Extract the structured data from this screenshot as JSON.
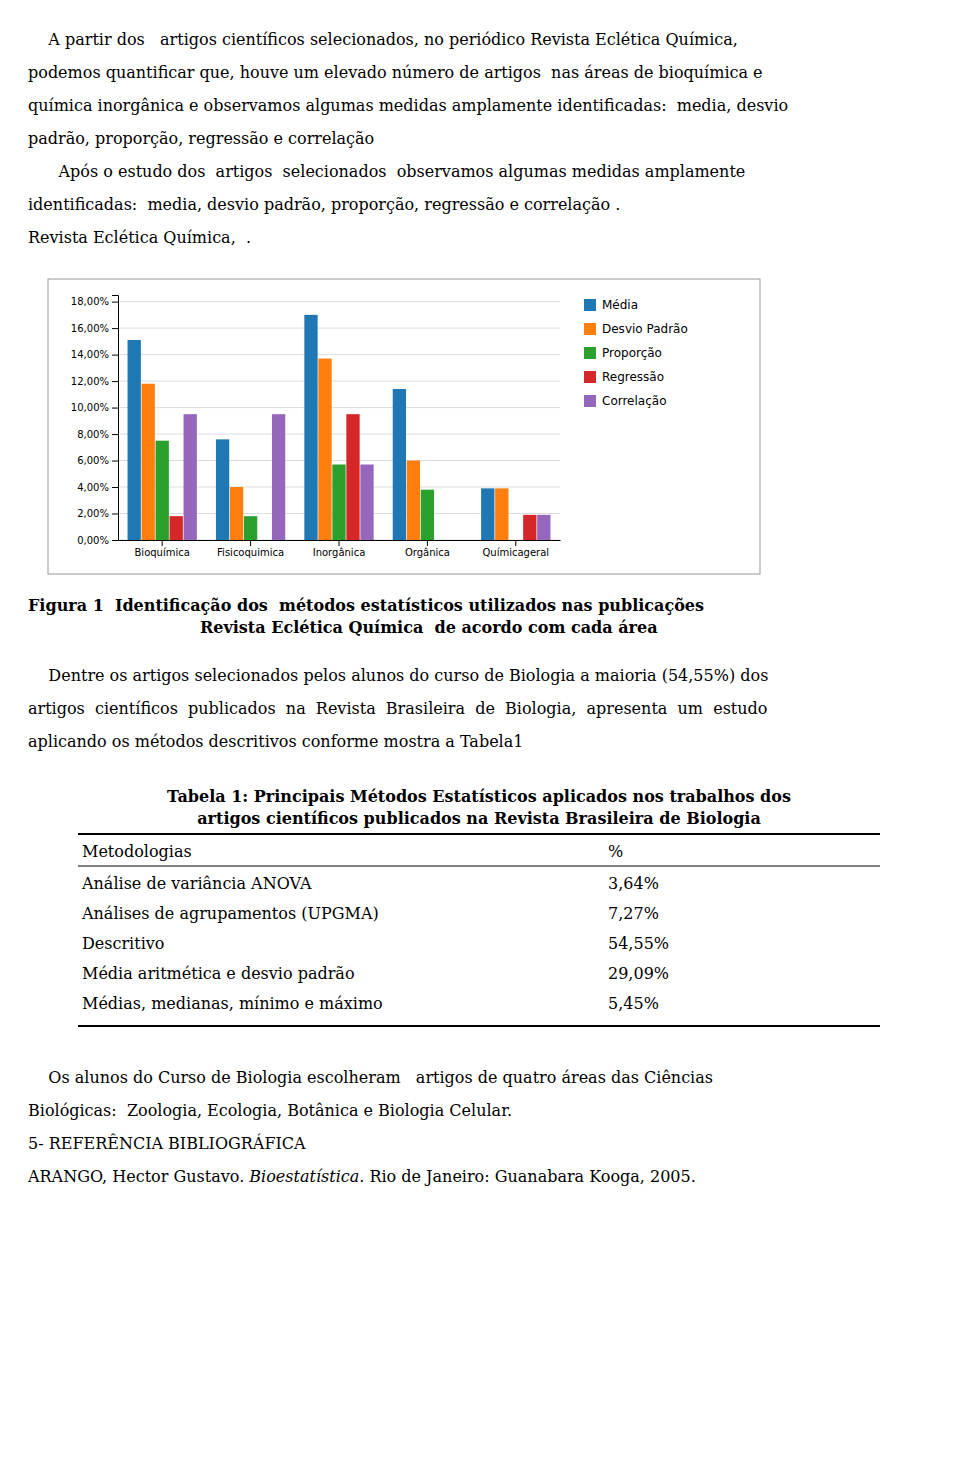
{
  "chart_data": {
    "type": "bar",
    "title": "Figura 1  Identificação dos  métodos estatísticos utilizados nas publicações",
    "subtitle": "Revista Eclética Química  de acordo com cada área",
    "categories": [
      "Bioquímica",
      "Fisicoquimica",
      "Inorgânica",
      "Orgânica",
      "Químicageral"
    ],
    "series": [
      {
        "name": "Média",
        "values": [
          15.1,
          7.6,
          17.0,
          11.4,
          3.9
        ]
      },
      {
        "name": "Desvio Padrão",
        "values": [
          11.8,
          4.0,
          13.7,
          6.0,
          3.9
        ]
      },
      {
        "name": "Proporção",
        "values": [
          7.5,
          1.8,
          5.7,
          3.8,
          0.0
        ]
      },
      {
        "name": "Regressão",
        "values": [
          1.8,
          0.0,
          9.5,
          0.0,
          1.9
        ]
      },
      {
        "name": "Correlação",
        "values": [
          9.5,
          9.5,
          5.7,
          0.0,
          1.9
        ]
      }
    ],
    "ylim": [
      0,
      18.5
    ],
    "yticks": [
      {
        "value": 0,
        "label": "0,00%"
      },
      {
        "value": 2,
        "label": "2,00%"
      },
      {
        "value": 4,
        "label": "4,00%"
      },
      {
        "value": 6,
        "label": "6,00%"
      },
      {
        "value": 8,
        "label": "8,00%"
      },
      {
        "value": 10,
        "label": "10,00%"
      },
      {
        "value": 12,
        "label": "12,00%"
      },
      {
        "value": 14,
        "label": "14,00%"
      },
      {
        "value": 16,
        "label": "16,00%"
      },
      {
        "value": 18,
        "label": "18,00%"
      }
    ],
    "grid": true,
    "legend": "right"
  },
  "page": {
    "top_lines": [
      "    A partir dos   artigos científicos selecionados, no periódico Revista Eclética Química,",
      "podemos quantificar que, houve um elevado número de artigos  nas áreas de bioquímica e",
      "química inorgânica e observamos algumas medidas amplamente identificadas:  media, desvio",
      "padrão, proporção, regressão e correlação",
      "      Após o estudo dos  artigos  selecionados  observamos algumas medidas amplamente",
      "identificadas:  media, desvio padrão, proporção, regressão e correlação .",
      "Revista Eclética Química,  ."
    ],
    "para2_lines": [
      "    Dentre os artigos selecionados pelos alunos do curso de Biologia a maioria (54,55%) dos",
      "artigos  científicos  publicados  na  Revista  Brasileira  de  Biologia,  apresenta  um  estudo",
      "aplicando os métodos descritivos conforme mostra a Tabela1"
    ],
    "table": {
      "title": [
        "Tabela 1: Principais Métodos Estatísticos aplicados nos trabalhos dos",
        "artigos científicos publicados na Revista Brasileira de Biologia"
      ],
      "headers": [
        "Metodologias",
        "%"
      ],
      "rows": [
        [
          "Análise de variância ANOVA",
          "3,64%"
        ],
        [
          "Análises de agrupamentos (UPGMA)",
          "7,27%"
        ],
        [
          "Descritivo",
          "54,55%"
        ],
        [
          "Média aritmética e desvio padrão",
          "29,09%"
        ],
        [
          "Médias, medianas, mínimo e máximo",
          "5,45%"
        ]
      ]
    },
    "para3_lines": [
      "    Os alunos do Curso de Biologia escolheram   artigos de quatro áreas das Ciências",
      "Biológicas:  Zoologia, Ecologia, Botânica e Biologia Celular.",
      "5- REFERÊNCIA BIBLIOGRÁFICA"
    ],
    "last_line": [
      "ARANGO, Hector Gustavo. ",
      "Bioestatística",
      ". Rio de Janeiro: Guanabara Kooga, 2005."
    ]
  }
}
